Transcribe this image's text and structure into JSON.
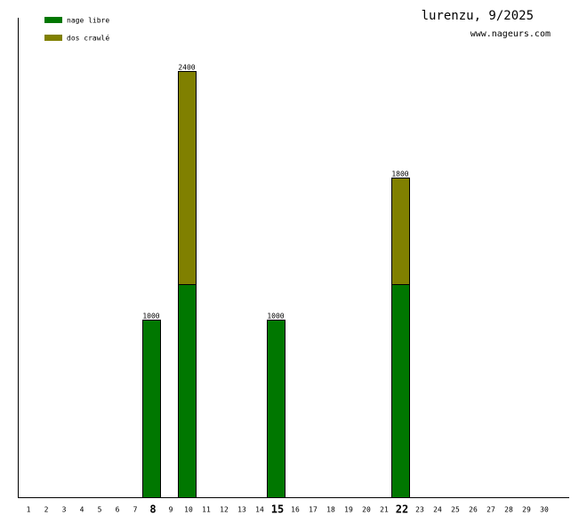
{
  "chart_data": {
    "type": "stacked-bar",
    "title": "lurenzu, 9/2025",
    "subtitle": "www.nageurs.com",
    "categories": [
      "1",
      "2",
      "3",
      "4",
      "5",
      "6",
      "7",
      "8",
      "9",
      "10",
      "11",
      "12",
      "13",
      "14",
      "15",
      "16",
      "17",
      "18",
      "19",
      "20",
      "21",
      "22",
      "23",
      "24",
      "25",
      "26",
      "27",
      "28",
      "29",
      "30"
    ],
    "emphasized": [
      7,
      14,
      21
    ],
    "series": [
      {
        "name": "nage libre",
        "color": "#007700",
        "values": [
          0,
          0,
          0,
          0,
          0,
          0,
          0,
          1000,
          0,
          1200,
          0,
          0,
          0,
          0,
          1000,
          0,
          0,
          0,
          0,
          0,
          0,
          1200,
          0,
          0,
          0,
          0,
          0,
          0,
          0,
          0
        ]
      },
      {
        "name": "dos crawlé",
        "color": "#808000",
        "values": [
          0,
          0,
          0,
          0,
          0,
          0,
          0,
          0,
          0,
          1200,
          0,
          0,
          0,
          0,
          0,
          0,
          0,
          0,
          0,
          0,
          0,
          600,
          0,
          0,
          0,
          0,
          0,
          0,
          0,
          0
        ]
      }
    ],
    "totals": [
      null,
      null,
      null,
      null,
      null,
      null,
      null,
      1000,
      null,
      2400,
      null,
      null,
      null,
      null,
      1000,
      null,
      null,
      null,
      null,
      null,
      null,
      1800,
      null,
      null,
      null,
      null,
      null,
      null,
      null,
      null
    ],
    "ylim": [
      0,
      2700
    ]
  }
}
